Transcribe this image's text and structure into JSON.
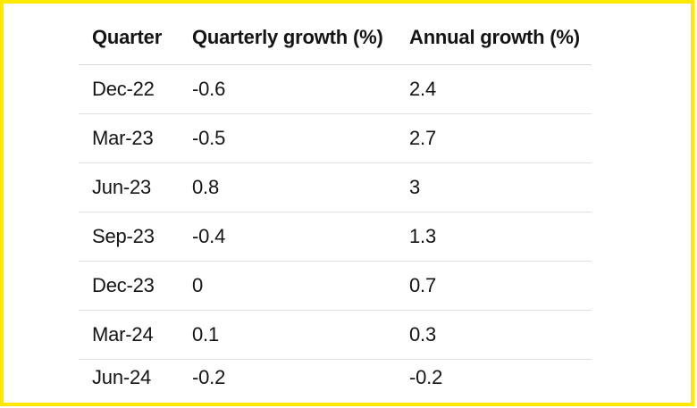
{
  "colors": {
    "border_yellow": "#ffe900",
    "text": "#141414",
    "row_divider": "#e0e0e0",
    "header_divider": "#d8d8d8",
    "background": "#ffffff"
  },
  "table": {
    "columns": [
      "Quarter",
      "Quarterly growth (%)",
      "Annual growth (%)"
    ],
    "rows": [
      {
        "quarter": "Dec-22",
        "quarterly": "-0.6",
        "annual": "2.4"
      },
      {
        "quarter": "Mar-23",
        "quarterly": "-0.5",
        "annual": "2.7"
      },
      {
        "quarter": "Jun-23",
        "quarterly": "0.8",
        "annual": "3"
      },
      {
        "quarter": "Sep-23",
        "quarterly": "-0.4",
        "annual": "1.3"
      },
      {
        "quarter": "Dec-23",
        "quarterly": "0",
        "annual": "0.7"
      },
      {
        "quarter": "Mar-24",
        "quarterly": "0.1",
        "annual": "0.3"
      },
      {
        "quarter": "Jun-24",
        "quarterly": "-0.2",
        "annual": "-0.2"
      }
    ]
  },
  "chart_data": {
    "type": "table",
    "title": "",
    "columns": [
      "Quarter",
      "Quarterly growth (%)",
      "Annual growth (%)"
    ],
    "categories": [
      "Dec-22",
      "Mar-23",
      "Jun-23",
      "Sep-23",
      "Dec-23",
      "Mar-24",
      "Jun-24"
    ],
    "series": [
      {
        "name": "Quarterly growth (%)",
        "values": [
          -0.6,
          -0.5,
          0.8,
          -0.4,
          0,
          0.1,
          -0.2
        ]
      },
      {
        "name": "Annual growth (%)",
        "values": [
          2.4,
          2.7,
          3,
          1.3,
          0.7,
          0.3,
          -0.2
        ]
      }
    ]
  }
}
